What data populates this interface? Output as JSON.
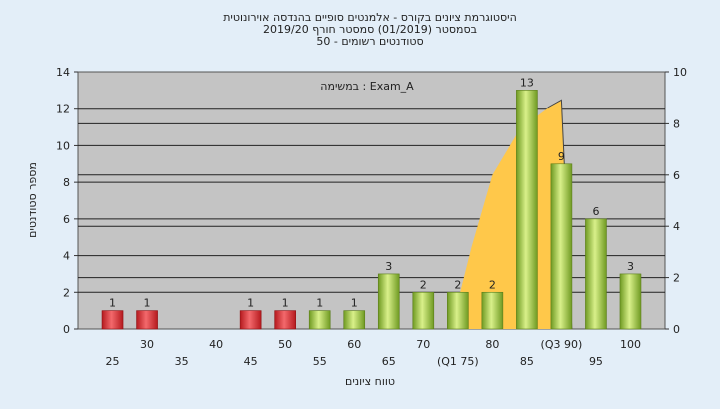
{
  "chart_data": {
    "type": "bar",
    "title_lines": [
      "היסטוגרמת ציונים בקורס - אלמנטים סופיים בהנדסה אוירונוטית",
      "בסמסטר  (01/2019)  סמסטר חורף 2019/20",
      "סטודנטים רשומים - 50"
    ],
    "annotation": "במשימה : Exam_A",
    "xlabel": "טווח ציונים",
    "ylabel": "מספר סטודנטים",
    "ylim": [
      0,
      14
    ],
    "y_ticks": [
      0,
      2,
      4,
      6,
      8,
      10,
      12,
      14
    ],
    "y2lim": [
      0,
      10
    ],
    "y2_ticks": [
      0,
      2,
      4,
      6,
      8,
      10
    ],
    "x_tick_labels": [
      "25",
      "30",
      "35",
      "40",
      "45",
      "50",
      "55",
      "60",
      "65",
      "70",
      "(Q1 75)",
      "80",
      "85",
      "(Q3 90)",
      "95",
      "100"
    ],
    "bars": [
      {
        "x": 25,
        "value": 1,
        "color": "red"
      },
      {
        "x": 30,
        "value": 1,
        "color": "red"
      },
      {
        "x": 45,
        "value": 1,
        "color": "red"
      },
      {
        "x": 50,
        "value": 1,
        "color": "red"
      },
      {
        "x": 55,
        "value": 1,
        "color": "green"
      },
      {
        "x": 60,
        "value": 1,
        "color": "green"
      },
      {
        "x": 65,
        "value": 3,
        "color": "green"
      },
      {
        "x": 70,
        "value": 2,
        "color": "green"
      },
      {
        "x": 75,
        "value": 2,
        "color": "green"
      },
      {
        "x": 80,
        "value": 2,
        "color": "green"
      },
      {
        "x": 85,
        "value": 13,
        "color": "green"
      },
      {
        "x": 90,
        "value": 9,
        "color": "green"
      },
      {
        "x": 95,
        "value": 6,
        "color": "green"
      },
      {
        "x": 100,
        "value": 3,
        "color": "green"
      }
    ],
    "area_series": {
      "axis": "secondary",
      "color": "#ffc84a",
      "points": [
        {
          "x": 74,
          "y": 0
        },
        {
          "x": 77,
          "y": 3.2
        },
        {
          "x": 80,
          "y": 6.0
        },
        {
          "x": 84,
          "y": 7.8
        },
        {
          "x": 88,
          "y": 8.6
        },
        {
          "x": 90,
          "y": 8.9
        },
        {
          "x": 91.5,
          "y": 0
        }
      ]
    },
    "grid": true,
    "colors": {
      "red": "#d92b30",
      "green": "#97c243",
      "background": "#e3eef8",
      "plot": "#c4c4c4"
    }
  }
}
